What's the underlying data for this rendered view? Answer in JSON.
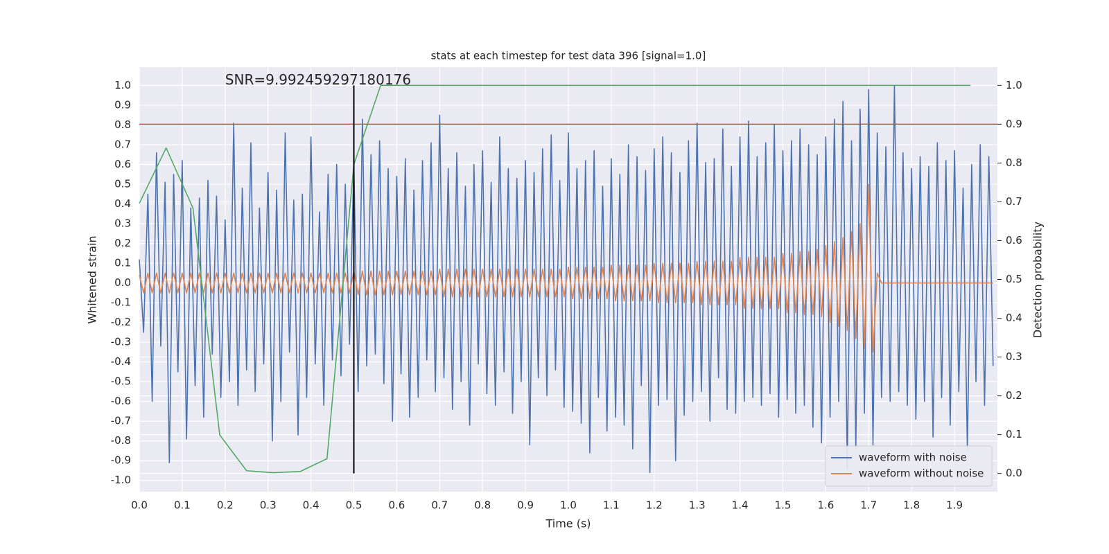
{
  "chart_data": {
    "type": "line",
    "title": "stats at each timestep for test data 396 [signal=1.0]",
    "x_label": "Time (s)",
    "y_label": "Whitened strain",
    "y2_label": "Detection probability",
    "xlim": [
      0,
      2.0
    ],
    "ylim": [
      -1.057,
      1.093
    ],
    "y2lim": [
      -0.047,
      1.047
    ],
    "xticks": [
      {
        "value": 0,
        "label": "0.0"
      },
      0.1,
      0.2,
      0.3,
      0.4,
      0.5,
      0.6,
      0.7,
      0.8,
      0.9,
      {
        "value": 1,
        "label": "1.0"
      },
      1.1,
      1.2,
      1.3,
      1.4,
      1.5,
      1.6,
      1.7,
      1.8,
      1.9
    ],
    "yticks": [
      {
        "value": -1,
        "label": "-1.0"
      },
      -0.9,
      -0.8,
      -0.7,
      -0.6,
      -0.5,
      -0.4,
      -0.3,
      -0.2,
      -0.1,
      {
        "value": 0,
        "label": "0.0"
      },
      0.1,
      0.2,
      0.3,
      0.4,
      0.5,
      0.6,
      0.7,
      0.8,
      0.9,
      {
        "value": 1,
        "label": "1.0"
      }
    ],
    "y2ticks": [
      {
        "value": 0,
        "label": "0.0"
      },
      0.1,
      0.2,
      0.3,
      0.4,
      0.5,
      0.6,
      0.7,
      0.8,
      0.9,
      {
        "value": 1,
        "label": "1.0"
      }
    ],
    "grid": true,
    "legend": "lower right",
    "x": [
      0,
      0.01,
      0.02,
      0.03,
      0.04,
      0.05,
      0.06,
      0.07,
      0.08,
      0.09,
      0.1,
      0.11,
      0.12,
      0.13,
      0.14,
      0.15,
      0.16,
      0.17,
      0.18,
      0.19,
      0.2,
      0.21,
      0.22,
      0.23,
      0.24,
      0.25,
      0.26,
      0.27,
      0.28,
      0.29,
      0.3,
      0.31,
      0.32,
      0.33,
      0.34,
      0.35,
      0.36,
      0.37,
      0.38,
      0.39,
      0.4,
      0.41,
      0.42,
      0.43,
      0.44,
      0.45,
      0.46,
      0.47,
      0.48,
      0.49,
      0.5,
      0.51,
      0.52,
      0.53,
      0.54,
      0.55,
      0.56,
      0.57,
      0.58,
      0.59,
      0.6,
      0.61,
      0.62,
      0.63,
      0.64,
      0.65,
      0.66,
      0.67,
      0.68,
      0.69,
      0.7,
      0.71,
      0.72,
      0.73,
      0.74,
      0.75,
      0.76,
      0.77,
      0.78,
      0.79,
      0.8,
      0.81,
      0.82,
      0.83,
      0.84,
      0.85,
      0.86,
      0.87,
      0.88,
      0.89,
      0.9,
      0.91,
      0.92,
      0.93,
      0.94,
      0.95,
      0.96,
      0.97,
      0.98,
      0.99,
      1,
      1.01,
      1.02,
      1.03,
      1.04,
      1.05,
      1.06,
      1.07,
      1.08,
      1.09,
      1.1,
      1.11,
      1.12,
      1.13,
      1.14,
      1.15,
      1.16,
      1.17,
      1.18,
      1.19,
      1.2,
      1.21,
      1.22,
      1.23,
      1.24,
      1.25,
      1.26,
      1.27,
      1.28,
      1.29,
      1.3,
      1.31,
      1.32,
      1.33,
      1.34,
      1.35,
      1.36,
      1.37,
      1.38,
      1.39,
      1.4,
      1.41,
      1.42,
      1.43,
      1.44,
      1.45,
      1.46,
      1.47,
      1.48,
      1.49,
      1.5,
      1.51,
      1.52,
      1.53,
      1.54,
      1.55,
      1.56,
      1.57,
      1.58,
      1.59,
      1.6,
      1.61,
      1.62,
      1.63,
      1.64,
      1.65,
      1.66,
      1.67,
      1.68,
      1.69,
      1.7,
      1.71,
      1.72,
      1.73,
      1.74,
      1.75,
      1.76,
      1.77,
      1.78,
      1.79,
      1.8,
      1.81,
      1.82,
      1.83,
      1.84,
      1.85,
      1.86,
      1.87,
      1.88,
      1.89,
      1.9,
      1.91,
      1.92,
      1.93,
      1.94,
      1.95,
      1.96,
      1.97,
      1.98,
      1.99
    ],
    "series": [
      {
        "name": "waveform with noise",
        "color": "#4c72b0",
        "values": [
          0.12,
          -0.25,
          0.45,
          -0.6,
          0.66,
          -0.32,
          0.51,
          -0.91,
          0.55,
          -0.45,
          0.62,
          -0.79,
          0.38,
          -0.52,
          0.43,
          -0.68,
          0.52,
          -0.36,
          0.44,
          -0.58,
          0.32,
          -0.5,
          0.81,
          -0.62,
          0.48,
          -0.44,
          0.71,
          -0.55,
          0.38,
          -0.41,
          0.56,
          -0.8,
          0.47,
          -0.6,
          0.76,
          -0.35,
          0.42,
          -0.77,
          0.45,
          -0.58,
          0.74,
          -0.41,
          0.36,
          -0.62,
          0.55,
          -0.39,
          0.6,
          -0.47,
          0.5,
          -0.31,
          0.61,
          -0.55,
          0.83,
          -0.42,
          0.65,
          -0.36,
          0.72,
          -0.51,
          0.58,
          -0.7,
          0.54,
          -0.46,
          0.63,
          -0.68,
          0.47,
          -0.58,
          0.62,
          -0.39,
          0.71,
          -0.55,
          0.85,
          -0.48,
          0.58,
          -0.64,
          0.66,
          -0.5,
          0.49,
          -0.72,
          0.6,
          -0.41,
          0.67,
          -0.56,
          0.51,
          -0.62,
          0.74,
          -0.45,
          0.58,
          -0.66,
          0.53,
          -0.5,
          0.62,
          -0.82,
          0.56,
          -0.48,
          0.68,
          -0.57,
          0.75,
          -0.44,
          0.52,
          -0.63,
          0.76,
          -0.65,
          0.58,
          -0.71,
          0.62,
          -0.86,
          0.67,
          -0.58,
          0.49,
          -0.75,
          0.63,
          -0.68,
          0.55,
          -0.72,
          0.7,
          -0.84,
          0.64,
          -0.52,
          0.57,
          -0.96,
          0.68,
          -0.62,
          0.74,
          -0.59,
          0.66,
          -0.9,
          0.56,
          -0.67,
          0.72,
          -0.6,
          0.81,
          -0.55,
          0.61,
          -0.7,
          0.63,
          -0.48,
          0.78,
          -0.64,
          0.59,
          -0.66,
          0.74,
          -0.6,
          0.82,
          -0.58,
          0.64,
          -0.62,
          0.71,
          -0.56,
          0.8,
          -0.68,
          0.67,
          -0.59,
          0.72,
          -0.66,
          0.78,
          -0.62,
          0.7,
          -0.73,
          0.65,
          -0.81,
          0.74,
          -0.68,
          0.83,
          -0.6,
          0.92,
          -0.94,
          0.72,
          -0.84,
          0.88,
          -0.66,
          0.98,
          -0.82,
          0.76,
          -0.58,
          0.69,
          -0.6,
          1.0,
          -0.55,
          0.66,
          -0.62,
          0.58,
          -0.69,
          0.64,
          -0.6,
          0.59,
          -0.78,
          0.71,
          -0.58,
          0.62,
          -0.72,
          0.67,
          -0.55,
          0.48,
          -0.85,
          0.6,
          -0.5,
          0.7,
          -0.62,
          0.64,
          -0.42
        ]
      },
      {
        "name": "waveform without noise",
        "color": "#dd8452",
        "values": [
          0.04,
          -0.05,
          0.05,
          -0.05,
          0.05,
          -0.05,
          0.05,
          -0.05,
          0.05,
          -0.05,
          0.05,
          -0.05,
          0.05,
          -0.05,
          0.05,
          -0.05,
          0.05,
          -0.05,
          0.05,
          -0.05,
          0.05,
          -0.05,
          0.05,
          -0.05,
          0.05,
          -0.05,
          0.05,
          -0.05,
          0.05,
          -0.05,
          0.05,
          -0.05,
          0.05,
          -0.05,
          0.05,
          -0.05,
          0.05,
          -0.05,
          0.05,
          -0.05,
          0.05,
          -0.05,
          0.05,
          -0.05,
          0.05,
          -0.05,
          0.05,
          -0.05,
          0.05,
          -0.05,
          0.06,
          -0.06,
          0.06,
          -0.06,
          0.06,
          -0.06,
          0.06,
          -0.06,
          0.06,
          -0.06,
          0.06,
          -0.06,
          0.06,
          -0.06,
          0.06,
          -0.06,
          0.06,
          -0.06,
          0.06,
          -0.06,
          0.07,
          -0.07,
          0.07,
          -0.07,
          0.07,
          -0.07,
          0.07,
          -0.07,
          0.07,
          -0.07,
          0.07,
          -0.07,
          0.07,
          -0.07,
          0.07,
          -0.07,
          0.07,
          -0.07,
          0.07,
          -0.07,
          0.07,
          -0.07,
          0.07,
          -0.07,
          0.07,
          -0.07,
          0.07,
          -0.07,
          0.07,
          -0.07,
          0.08,
          -0.08,
          0.08,
          -0.08,
          0.08,
          -0.08,
          0.08,
          -0.08,
          0.08,
          -0.08,
          0.09,
          -0.09,
          0.09,
          -0.09,
          0.09,
          -0.09,
          0.09,
          -0.09,
          0.09,
          -0.09,
          0.1,
          -0.1,
          0.1,
          -0.1,
          0.1,
          -0.1,
          0.1,
          -0.1,
          0.1,
          -0.1,
          0.11,
          -0.11,
          0.11,
          -0.11,
          0.11,
          -0.11,
          0.11,
          -0.11,
          0.11,
          -0.11,
          0.13,
          -0.13,
          0.13,
          -0.13,
          0.13,
          -0.13,
          0.13,
          -0.13,
          0.13,
          -0.13,
          0.15,
          -0.15,
          0.15,
          -0.15,
          0.16,
          -0.16,
          0.16,
          -0.16,
          0.17,
          -0.17,
          0.19,
          -0.2,
          0.21,
          -0.22,
          0.23,
          -0.24,
          0.26,
          -0.28,
          0.3,
          -0.33,
          0.5,
          -0.35,
          0.05,
          0,
          0,
          0,
          0,
          0,
          0,
          0,
          0,
          0,
          0,
          0,
          0,
          0,
          0,
          0,
          0,
          0,
          0,
          0,
          0,
          0,
          0,
          0,
          0,
          0,
          0,
          0
        ]
      },
      {
        "name": "detection probability",
        "color": "#55a868",
        "axis": "y2",
        "x": [
          0,
          0.0625,
          0.125,
          0.1875,
          0.25,
          0.3125,
          0.375,
          0.4375,
          0.5,
          0.5625,
          0.625,
          0.6875,
          0.75,
          0.8125,
          0.875,
          0.9375,
          1,
          1.0625,
          1.125,
          1.1875,
          1.25,
          1.3125,
          1.375,
          1.4375,
          1.5,
          1.5625,
          1.625,
          1.6875,
          1.75,
          1.8125,
          1.875,
          1.9375
        ],
        "values": [
          0.696,
          0.839,
          0.684,
          0.099,
          0.007,
          0.002,
          0.005,
          0.038,
          0.796,
          1.0,
          1.0,
          1.0,
          1.0,
          1.0,
          1.0,
          1.0,
          1.0,
          1.0,
          1.0,
          1.0,
          1.0,
          1.0,
          1.0,
          1.0,
          1.0,
          1.0,
          1.0,
          1.0,
          1.0,
          1.0,
          1.0,
          1.0
        ]
      }
    ],
    "hlines": [
      {
        "y": 0.9,
        "axis": "y2",
        "color": "#c44e52"
      }
    ],
    "vlines": [
      {
        "x": 0.5,
        "ymin": 0,
        "ymax": 1,
        "axis": "y2",
        "color": "#000000"
      }
    ],
    "annotations": [
      {
        "text": "SNR=9.992459297180176",
        "x": 0.2,
        "y": 1.0
      }
    ]
  }
}
